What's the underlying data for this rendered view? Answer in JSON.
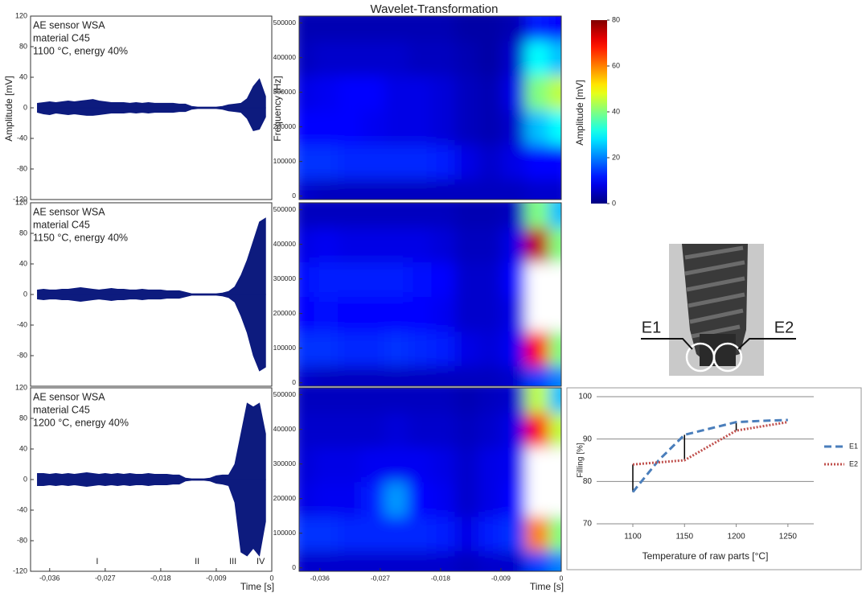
{
  "chart_data": [
    {
      "type": "envelope",
      "ylabel": "Amplitude [mV]",
      "text_lines": [
        "AE sensor WSA",
        "material C45",
        "1100 °C, energy 40%"
      ],
      "xlim": [
        -0.0391,
        0
      ],
      "ylim": [
        -120,
        120
      ],
      "yticks": [
        120,
        80,
        40,
        0,
        -40,
        -80,
        -120
      ],
      "x": [
        -0.038,
        -0.037,
        -0.036,
        -0.035,
        -0.034,
        -0.033,
        -0.032,
        -0.031,
        -0.03,
        -0.029,
        -0.028,
        -0.027,
        -0.026,
        -0.025,
        -0.024,
        -0.023,
        -0.022,
        -0.021,
        -0.02,
        -0.019,
        -0.018,
        -0.017,
        -0.016,
        -0.015,
        -0.014,
        -0.013,
        -0.012,
        -0.011,
        -0.01,
        -0.009,
        -0.008,
        -0.007,
        -0.006,
        -0.005,
        -0.004,
        -0.003,
        -0.002,
        -0.001
      ],
      "series": [
        {
          "color": "#0d1b7e",
          "values": [
            6,
            7,
            8,
            7,
            8,
            9,
            8,
            9,
            10,
            11,
            9,
            8,
            7,
            7,
            7,
            6,
            7,
            6,
            7,
            6,
            6,
            6,
            6,
            5,
            5,
            2,
            1,
            1,
            1,
            1,
            2,
            4,
            5,
            6,
            12,
            28,
            38,
            15
          ]
        },
        {
          "color": "#0d1b7e",
          "values": [
            -6,
            -8,
            -9,
            -7,
            -8,
            -9,
            -8,
            -9,
            -10,
            -10,
            -9,
            -8,
            -7,
            -7,
            -7,
            -6,
            -7,
            -6,
            -7,
            -6,
            -6,
            -6,
            -6,
            -5,
            -5,
            -2,
            -1,
            -1,
            -1,
            -1,
            -2,
            -4,
            -5,
            -6,
            -14,
            -30,
            -28,
            -12
          ]
        }
      ]
    },
    {
      "type": "envelope",
      "text_lines": [
        "AE sensor WSA",
        "material C45",
        "1150 °C, energy 40%"
      ],
      "xlim": [
        -0.0391,
        0
      ],
      "ylim": [
        -120,
        120
      ],
      "yticks": [
        120,
        80,
        40,
        0,
        -40,
        -80
      ],
      "x": [
        -0.038,
        -0.037,
        -0.036,
        -0.035,
        -0.034,
        -0.033,
        -0.032,
        -0.031,
        -0.03,
        -0.029,
        -0.028,
        -0.027,
        -0.026,
        -0.025,
        -0.024,
        -0.023,
        -0.022,
        -0.021,
        -0.02,
        -0.019,
        -0.018,
        -0.017,
        -0.016,
        -0.015,
        -0.014,
        -0.013,
        -0.012,
        -0.011,
        -0.01,
        -0.009,
        -0.008,
        -0.007,
        -0.006,
        -0.005,
        -0.004,
        -0.003,
        -0.002,
        -0.001
      ],
      "series": [
        {
          "color": "#0d1b7e",
          "values": [
            6,
            7,
            6,
            6,
            7,
            7,
            8,
            9,
            8,
            7,
            6,
            7,
            8,
            7,
            7,
            6,
            6,
            7,
            6,
            6,
            6,
            5,
            5,
            5,
            3,
            1,
            1,
            1,
            1,
            1,
            2,
            4,
            10,
            25,
            45,
            70,
            95,
            100
          ]
        },
        {
          "color": "#0d1b7e",
          "values": [
            -6,
            -7,
            -6,
            -6,
            -7,
            -7,
            -8,
            -9,
            -8,
            -7,
            -6,
            -7,
            -8,
            -7,
            -7,
            -6,
            -6,
            -7,
            -6,
            -6,
            -6,
            -5,
            -5,
            -5,
            -3,
            -1,
            -1,
            -1,
            -1,
            -1,
            -2,
            -4,
            -10,
            -28,
            -50,
            -80,
            -100,
            -95
          ]
        }
      ]
    },
    {
      "type": "envelope",
      "text_lines": [
        "AE sensor WSA",
        "material C45",
        "1200 °C, energy 40%"
      ],
      "xlim": [
        -0.0391,
        0
      ],
      "ylim": [
        -120,
        120
      ],
      "yticks": [
        120,
        80,
        40,
        0,
        -40,
        -80,
        -120
      ],
      "xticks": [
        {
          "value": -0.036,
          "label": "-0,036"
        },
        {
          "value": -0.027,
          "label": "-0,027"
        },
        {
          "value": -0.018,
          "label": "-0,018"
        },
        {
          "value": -0.009,
          "label": "-0,009"
        },
        0
      ],
      "xlabel": "Time [s]",
      "phases": [
        {
          "label": "I",
          "x": -0.0283
        },
        {
          "label": "II",
          "x": -0.0121
        },
        {
          "label": "III",
          "x": -0.0063
        },
        {
          "label": "IV",
          "x": -0.0018
        }
      ],
      "x": [
        -0.038,
        -0.037,
        -0.036,
        -0.035,
        -0.034,
        -0.033,
        -0.032,
        -0.031,
        -0.03,
        -0.029,
        -0.028,
        -0.027,
        -0.026,
        -0.025,
        -0.024,
        -0.023,
        -0.022,
        -0.021,
        -0.02,
        -0.019,
        -0.018,
        -0.017,
        -0.016,
        -0.015,
        -0.014,
        -0.013,
        -0.012,
        -0.011,
        -0.01,
        -0.009,
        -0.008,
        -0.007,
        -0.006,
        -0.005,
        -0.004,
        -0.003,
        -0.002,
        -0.001
      ],
      "series": [
        {
          "color": "#0d1b7e",
          "values": [
            8,
            8,
            7,
            8,
            7,
            8,
            7,
            8,
            9,
            8,
            7,
            8,
            7,
            8,
            7,
            8,
            7,
            7,
            8,
            7,
            7,
            7,
            6,
            6,
            2,
            1,
            1,
            1,
            2,
            5,
            6,
            6,
            20,
            60,
            100,
            95,
            100,
            60
          ]
        },
        {
          "color": "#0d1b7e",
          "values": [
            -8,
            -8,
            -7,
            -8,
            -7,
            -8,
            -7,
            -8,
            -9,
            -8,
            -7,
            -8,
            -7,
            -8,
            -7,
            -8,
            -7,
            -7,
            -8,
            -7,
            -7,
            -7,
            -6,
            -6,
            -2,
            -1,
            -1,
            -1,
            -2,
            -5,
            -6,
            -8,
            -30,
            -95,
            -100,
            -90,
            -100,
            -55
          ]
        }
      ]
    },
    {
      "type": "heatmap",
      "title": "Wavelet-Transformation",
      "ylabel": "Frequency [Hz]",
      "cmap": "jet",
      "colorbar": {
        "label": "Amplitude [mV]",
        "vlim": [
          0,
          80
        ],
        "ticks": [
          0,
          20,
          40,
          60,
          80
        ]
      },
      "xlim": [
        -0.0391,
        0
      ],
      "ylim": [
        -10000,
        520000
      ],
      "yticks": [
        0,
        100000,
        200000,
        300000,
        400000,
        500000
      ],
      "x": [
        -0.0385,
        -0.035,
        -0.0315,
        -0.028,
        -0.0245,
        -0.021,
        -0.0175,
        -0.014,
        -0.0105,
        -0.007,
        -0.0035,
        0
      ],
      "y": [
        0,
        100000,
        200000,
        300000,
        400000,
        500000
      ],
      "values": [
        [
          6,
          5,
          5,
          5,
          5,
          5,
          5,
          5,
          5,
          5,
          6,
          6
        ],
        [
          14,
          14,
          13,
          13,
          13,
          13,
          12,
          8,
          6,
          8,
          10,
          10
        ],
        [
          10,
          10,
          10,
          9,
          8,
          8,
          7,
          5,
          4,
          6,
          25,
          30
        ],
        [
          8,
          9,
          10,
          10,
          8,
          8,
          7,
          5,
          4,
          8,
          40,
          45
        ],
        [
          5,
          6,
          6,
          6,
          6,
          5,
          5,
          4,
          3,
          6,
          30,
          25
        ],
        [
          4,
          4,
          4,
          4,
          4,
          4,
          4,
          3,
          3,
          4,
          12,
          10
        ]
      ]
    },
    {
      "type": "heatmap",
      "cmap": "jet",
      "vlim": [
        0,
        80
      ],
      "xlim": [
        -0.0391,
        0
      ],
      "ylim": [
        -10000,
        520000
      ],
      "yticks": [
        0,
        100000,
        200000,
        300000,
        400000,
        500000
      ],
      "x": [
        -0.0385,
        -0.035,
        -0.0315,
        -0.028,
        -0.0245,
        -0.021,
        -0.0175,
        -0.014,
        -0.0105,
        -0.007,
        -0.0035,
        0
      ],
      "y": [
        0,
        100000,
        200000,
        300000,
        400000,
        500000
      ],
      "values": [
        [
          6,
          5,
          5,
          5,
          5,
          5,
          5,
          5,
          5,
          6,
          15,
          20
        ],
        [
          14,
          14,
          13,
          13,
          14,
          13,
          12,
          8,
          7,
          9,
          70,
          40
        ],
        [
          10,
          11,
          10,
          10,
          10,
          10,
          9,
          6,
          6,
          8,
          100,
          100
        ],
        [
          11,
          12,
          12,
          12,
          12,
          11,
          10,
          6,
          6,
          10,
          100,
          100
        ],
        [
          8,
          9,
          8,
          8,
          8,
          8,
          7,
          5,
          5,
          8,
          75,
          40
        ],
        [
          5,
          5,
          5,
          5,
          5,
          5,
          5,
          4,
          4,
          5,
          40,
          25
        ]
      ]
    },
    {
      "type": "heatmap",
      "cmap": "jet",
      "vlim": [
        0,
        80
      ],
      "xlim": [
        -0.0391,
        0
      ],
      "ylim": [
        -10000,
        520000
      ],
      "yticks": [
        0,
        100000,
        200000,
        300000,
        400000,
        500000
      ],
      "xticks": [
        {
          "value": -0.036,
          "label": "-0,036"
        },
        {
          "value": -0.027,
          "label": "-0,027"
        },
        {
          "value": -0.018,
          "label": "-0,018"
        },
        {
          "value": -0.009,
          "label": "-0,009"
        },
        0
      ],
      "xlabel": "Time [s]",
      "x": [
        -0.0385,
        -0.035,
        -0.0315,
        -0.028,
        -0.0245,
        -0.021,
        -0.0175,
        -0.014,
        -0.0105,
        -0.007,
        -0.0035,
        0
      ],
      "y": [
        0,
        100000,
        200000,
        300000,
        400000,
        500000
      ],
      "values": [
        [
          6,
          6,
          6,
          6,
          6,
          6,
          6,
          5,
          6,
          6,
          15,
          20
        ],
        [
          14,
          14,
          13,
          13,
          13,
          13,
          12,
          8,
          12,
          14,
          60,
          40
        ],
        [
          8,
          9,
          9,
          12,
          22,
          10,
          9,
          6,
          8,
          10,
          100,
          100
        ],
        [
          7,
          8,
          8,
          9,
          9,
          9,
          8,
          6,
          8,
          9,
          100,
          100
        ],
        [
          6,
          6,
          6,
          6,
          7,
          6,
          6,
          5,
          6,
          8,
          70,
          45
        ],
        [
          5,
          5,
          5,
          5,
          5,
          5,
          5,
          4,
          5,
          6,
          45,
          25
        ]
      ]
    },
    {
      "type": "line",
      "xlabel": "Temperature of raw parts [°C]",
      "ylabel": "Filling [%]",
      "x": [
        1100,
        1125,
        1150,
        1175,
        1200,
        1225,
        1250
      ],
      "xlim": [
        1065,
        1275
      ],
      "ylim": [
        70,
        100
      ],
      "xticks": [
        1100,
        1150,
        1200,
        1250
      ],
      "yticks": [
        70,
        80,
        90,
        100
      ],
      "grid": true,
      "legend": "right",
      "gap_lines_x": [
        1100,
        1150,
        1200
      ],
      "series": [
        {
          "name": "E1",
          "color": "#4a7ebb",
          "dash": "dashed",
          "values": [
            77.5,
            85,
            91,
            92.5,
            94,
            94.3,
            94.5
          ]
        },
        {
          "name": "E2",
          "color": "#c0504d",
          "dash": "dotted",
          "values": [
            84,
            84.5,
            85,
            88.5,
            92,
            93,
            94
          ]
        }
      ]
    }
  ],
  "photo_labels": [
    "E1",
    "E2"
  ]
}
